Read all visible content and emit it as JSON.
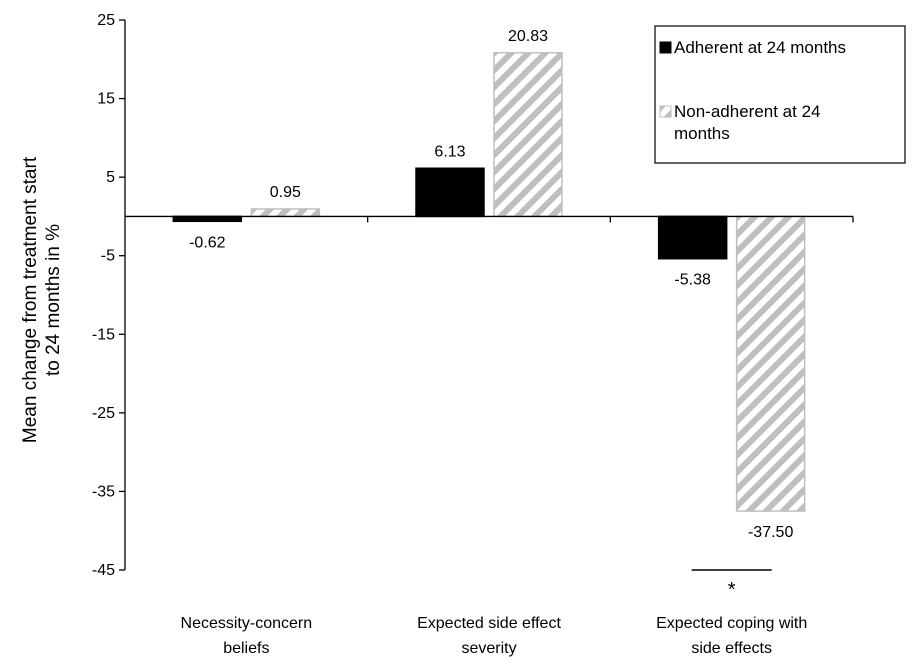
{
  "chart_data": {
    "type": "bar",
    "title": "",
    "ylabel": [
      "Mean change from treatment start",
      "to 24 months in %"
    ],
    "xlabel": "",
    "categories": [
      [
        "Necessity-concern",
        "beliefs"
      ],
      [
        "Expected side effect",
        "severity"
      ],
      [
        "Expected coping with",
        "side effects"
      ]
    ],
    "series": [
      {
        "name": "Adherent at 24 months",
        "values": [
          -0.62,
          6.13,
          -5.38
        ],
        "labels": [
          "-0.62",
          "6.13",
          "-5.38"
        ],
        "color": "#000000",
        "pattern": "solid"
      },
      {
        "name": [
          "Non-adherent at 24",
          "months"
        ],
        "values": [
          0.95,
          20.83,
          -37.5
        ],
        "labels": [
          "0.95",
          "20.83",
          "-37.50"
        ],
        "color": "#bfbfbf",
        "pattern": "diagonal-stripes"
      }
    ],
    "ylim": [
      -45,
      25
    ],
    "yticks": [
      25,
      15,
      5,
      -5,
      -15,
      -25,
      -35,
      -45
    ],
    "grid": false,
    "legend_position": "top-right",
    "annotations": [
      {
        "text": "*",
        "category_index": 2,
        "note_type": "significance-bracket"
      }
    ]
  }
}
